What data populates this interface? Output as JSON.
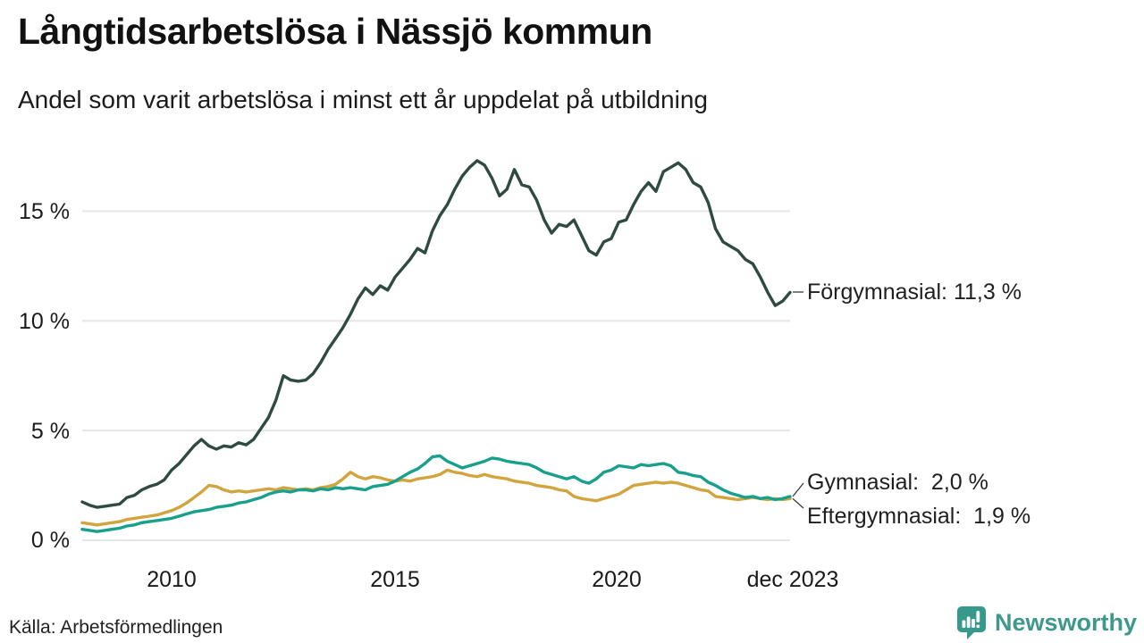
{
  "header": {
    "title": "Långtidsarbetslösa i Nässjö kommun",
    "subtitle": "Andel som varit arbetslösa i minst ett år uppdelat på utbildning"
  },
  "chart_data": {
    "type": "line",
    "title": "Långtidsarbetslösa i Nässjö kommun",
    "subtitle": "Andel som varit arbetslösa i minst ett år uppdelat på utbildning",
    "xlabel": "",
    "ylabel": "",
    "unit": "%",
    "xlim": [
      2008.0,
      2023.917
    ],
    "ylim": [
      0,
      18
    ],
    "grid": "horizontal-only",
    "legend_position": "right-end-labels",
    "xticks": [
      {
        "label": "2010",
        "year": 2010
      },
      {
        "label": "2015",
        "year": 2015
      },
      {
        "label": "2020",
        "year": 2020
      },
      {
        "label": "dec 2023",
        "year": 2023.917
      }
    ],
    "yticks": [
      {
        "label": "0 %",
        "value": 0
      },
      {
        "label": "5 %",
        "value": 5
      },
      {
        "label": "10 %",
        "value": 10
      },
      {
        "label": "15 %",
        "value": 15
      }
    ],
    "series": [
      {
        "key": "forgymnasial",
        "name": "Förgymnasial",
        "color": "#2e4a42",
        "end_label": "Förgymnasial: 11,3 %",
        "end_value_text": "11,3 %",
        "values": [
          1.75,
          1.6,
          1.5,
          1.55,
          1.6,
          1.65,
          1.95,
          2.05,
          2.3,
          2.45,
          2.55,
          2.75,
          3.2,
          3.5,
          3.9,
          4.3,
          4.6,
          4.3,
          4.15,
          4.3,
          4.25,
          4.45,
          4.35,
          4.6,
          5.1,
          5.6,
          6.4,
          7.5,
          7.3,
          7.25,
          7.3,
          7.6,
          8.1,
          8.7,
          9.2,
          9.7,
          10.3,
          11.0,
          11.5,
          11.2,
          11.6,
          11.4,
          12.0,
          12.4,
          12.8,
          13.3,
          13.1,
          14.1,
          14.8,
          15.3,
          16.0,
          16.6,
          17.0,
          17.3,
          17.1,
          16.5,
          15.7,
          16.0,
          16.9,
          16.2,
          16.1,
          15.5,
          14.6,
          14.0,
          14.4,
          14.3,
          14.6,
          13.9,
          13.2,
          13.0,
          13.6,
          13.75,
          14.5,
          14.6,
          15.3,
          15.9,
          16.3,
          15.9,
          16.8,
          17.0,
          17.2,
          16.9,
          16.3,
          16.1,
          15.4,
          14.2,
          13.6,
          13.4,
          13.2,
          12.8,
          12.6,
          12.0,
          11.3,
          10.7,
          10.9,
          11.3
        ]
      },
      {
        "key": "gymnasial",
        "name": "Gymnasial",
        "color": "#18a08c",
        "end_label": "Gymnasial:  2,0 %",
        "end_value_text": "2,0 %",
        "values": [
          0.5,
          0.45,
          0.4,
          0.45,
          0.5,
          0.55,
          0.65,
          0.7,
          0.8,
          0.85,
          0.9,
          0.95,
          1.0,
          1.1,
          1.2,
          1.3,
          1.35,
          1.4,
          1.5,
          1.55,
          1.6,
          1.7,
          1.75,
          1.85,
          1.95,
          2.1,
          2.2,
          2.25,
          2.2,
          2.3,
          2.3,
          2.25,
          2.35,
          2.3,
          2.4,
          2.35,
          2.4,
          2.35,
          2.3,
          2.45,
          2.5,
          2.55,
          2.7,
          2.9,
          3.1,
          3.25,
          3.5,
          3.8,
          3.85,
          3.6,
          3.45,
          3.3,
          3.4,
          3.5,
          3.6,
          3.75,
          3.7,
          3.6,
          3.55,
          3.5,
          3.45,
          3.3,
          3.1,
          3.0,
          2.9,
          2.8,
          2.9,
          2.7,
          2.6,
          2.8,
          3.1,
          3.2,
          3.4,
          3.35,
          3.3,
          3.45,
          3.4,
          3.45,
          3.5,
          3.4,
          3.1,
          3.05,
          2.95,
          2.9,
          2.65,
          2.5,
          2.3,
          2.15,
          2.05,
          1.95,
          2.0,
          1.9,
          1.95,
          1.85,
          1.9,
          2.0
        ]
      },
      {
        "key": "eftergymnasial",
        "name": "Eftergymnasial",
        "color": "#d2a43e",
        "end_label": "Eftergymnasial:  1,9 %",
        "end_value_text": "1,9 %",
        "values": [
          0.8,
          0.75,
          0.7,
          0.75,
          0.8,
          0.85,
          0.95,
          1.0,
          1.05,
          1.1,
          1.15,
          1.25,
          1.35,
          1.5,
          1.7,
          1.95,
          2.2,
          2.5,
          2.45,
          2.3,
          2.2,
          2.25,
          2.2,
          2.25,
          2.3,
          2.35,
          2.3,
          2.4,
          2.35,
          2.3,
          2.35,
          2.3,
          2.4,
          2.45,
          2.55,
          2.8,
          3.1,
          2.9,
          2.8,
          2.9,
          2.85,
          2.75,
          2.7,
          2.75,
          2.7,
          2.8,
          2.85,
          2.9,
          3.0,
          3.2,
          3.1,
          3.05,
          2.95,
          2.9,
          3.0,
          2.9,
          2.85,
          2.8,
          2.7,
          2.65,
          2.6,
          2.5,
          2.45,
          2.4,
          2.3,
          2.25,
          2.0,
          1.9,
          1.85,
          1.8,
          1.9,
          2.0,
          2.1,
          2.3,
          2.5,
          2.55,
          2.6,
          2.65,
          2.6,
          2.65,
          2.6,
          2.5,
          2.4,
          2.3,
          2.25,
          2.0,
          1.95,
          1.9,
          1.85,
          1.9,
          1.95,
          1.9,
          1.85,
          1.9,
          1.85,
          1.9
        ]
      }
    ]
  },
  "footer": {
    "source": "Källa: Arbetsförmedlingen",
    "brand": "Newsworthy"
  }
}
